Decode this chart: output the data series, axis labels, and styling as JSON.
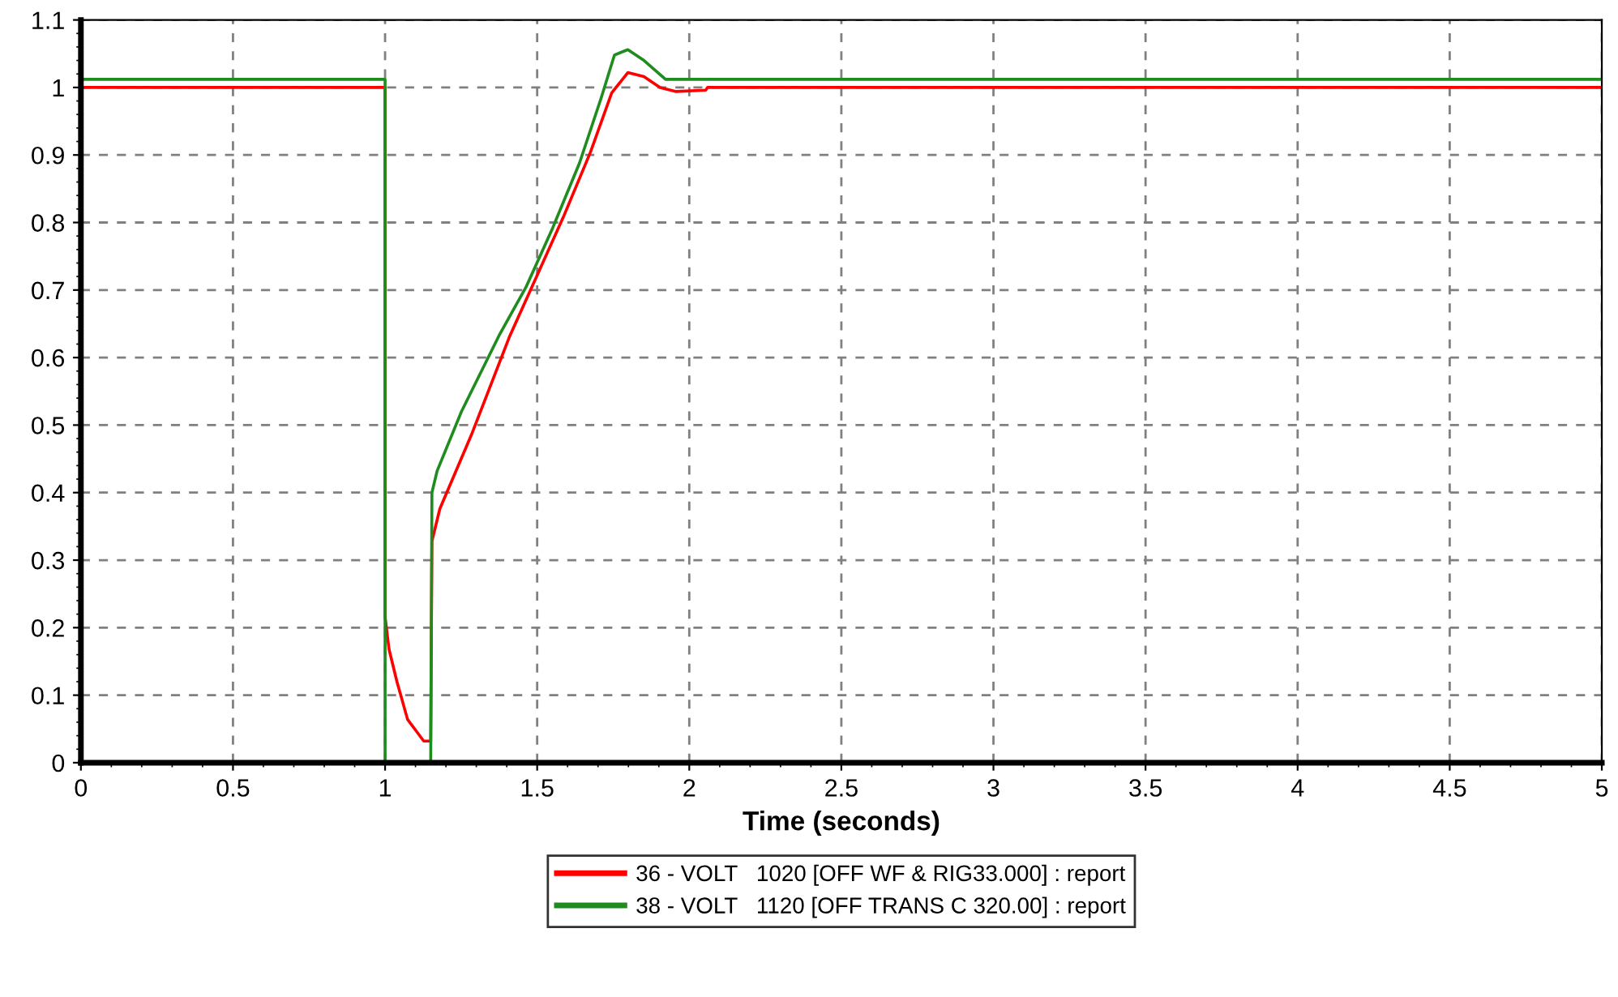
{
  "chart_data": {
    "type": "line",
    "xlabel": "Time (seconds)",
    "xlim": [
      0,
      5
    ],
    "xticks": [
      0,
      0.5,
      1,
      1.5,
      2,
      2.5,
      3,
      3.5,
      4,
      4.5,
      5
    ],
    "ylim": [
      0,
      1.1
    ],
    "yticks": [
      0,
      0.1,
      0.2,
      0.3,
      0.4,
      0.5,
      0.6,
      0.7,
      0.8,
      0.9,
      1,
      1.1
    ],
    "grid": true,
    "legend": "bottom",
    "line_style": "solid",
    "marker": "none",
    "series": [
      {
        "name": "36 - VOLT   1020 [OFF WF & RIG33.000] : report",
        "color": "#ff0000",
        "x": [
          0,
          1.0,
          1.0,
          1.013,
          1.039,
          1.074,
          1.127,
          1.15,
          1.154,
          1.18,
          1.286,
          1.41,
          1.498,
          1.586,
          1.675,
          1.745,
          1.798,
          1.851,
          1.904,
          1.957,
          2.054,
          2.06,
          5
        ],
        "values": [
          1.0,
          1.0,
          0.216,
          0.168,
          0.12,
          0.064,
          0.032,
          0.032,
          0.328,
          0.376,
          0.488,
          0.632,
          0.72,
          0.808,
          0.904,
          0.992,
          1.022,
          1.016,
          1.0,
          0.994,
          0.996,
          1.0,
          1.0
        ]
      },
      {
        "name": "38 - VOLT   1120 [OFF TRANS C 320.00] : report",
        "color": "#1e8c1e",
        "x": [
          0,
          1.0,
          1.0,
          1.15,
          1.154,
          1.171,
          1.251,
          1.374,
          1.463,
          1.551,
          1.639,
          1.71,
          1.754,
          1.798,
          1.851,
          1.922,
          5
        ],
        "values": [
          1.012,
          1.012,
          0,
          0,
          0.4,
          0.432,
          0.52,
          0.632,
          0.704,
          0.792,
          0.888,
          0.984,
          1.048,
          1.056,
          1.04,
          1.012,
          1.012
        ]
      }
    ]
  }
}
